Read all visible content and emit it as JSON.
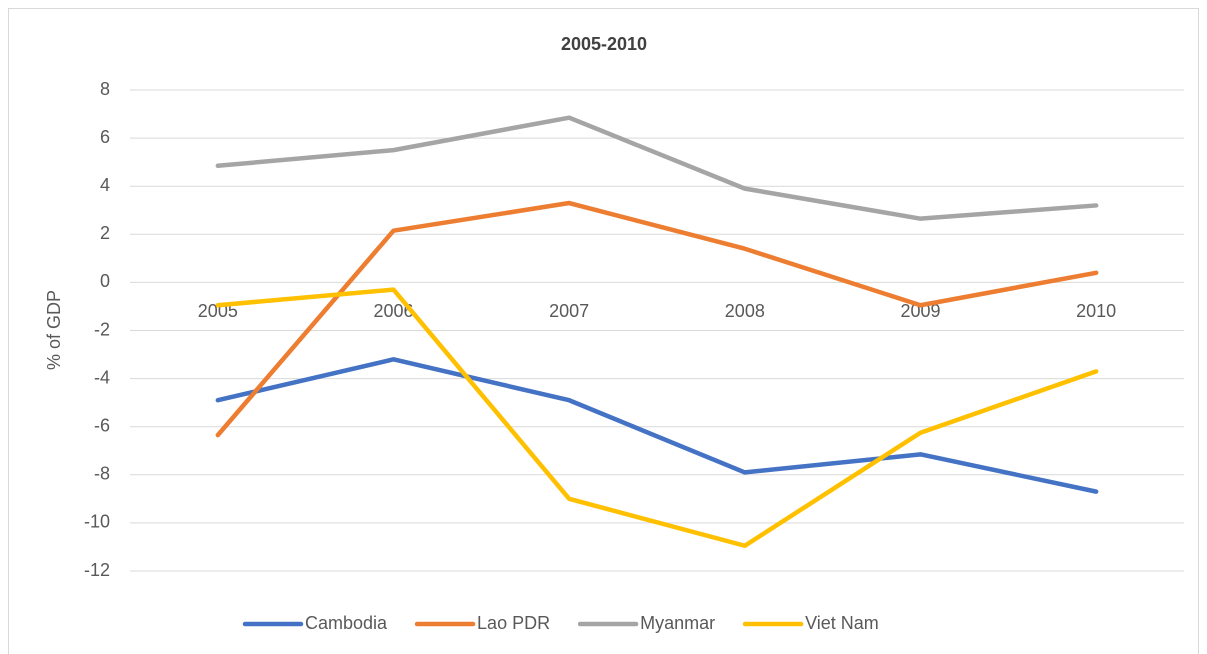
{
  "chart_data": {
    "type": "line",
    "title": "2005-2010",
    "y_label": "% of GDP",
    "categories": [
      "2005",
      "2006",
      "2007",
      "2008",
      "2009",
      "2010"
    ],
    "series": [
      {
        "name": "Cambodia",
        "color": "#4472c4",
        "values": [
          -4.9,
          -3.2,
          -4.9,
          -7.9,
          -7.15,
          -8.7
        ]
      },
      {
        "name": "Lao PDR",
        "color": "#ed7d31",
        "values": [
          -6.35,
          2.15,
          3.3,
          1.4,
          -0.95,
          0.4
        ]
      },
      {
        "name": "Myanmar",
        "color": "#a5a5a5",
        "values": [
          4.85,
          5.5,
          6.85,
          3.9,
          2.65,
          3.2
        ]
      },
      {
        "name": "Viet Nam",
        "color": "#ffc000",
        "values": [
          -0.95,
          -0.3,
          -9.0,
          -10.95,
          -6.25,
          -3.7
        ]
      }
    ],
    "ylim": [
      -12,
      8
    ],
    "yticks": [
      -12,
      -10,
      -8,
      -6,
      -4,
      -2,
      0,
      2,
      4,
      6,
      8
    ],
    "grid": true,
    "legend": "bottom"
  }
}
